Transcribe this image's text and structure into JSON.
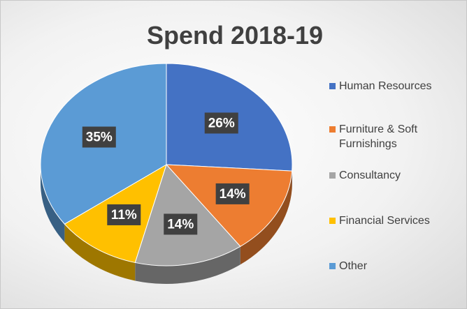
{
  "chart_data": {
    "type": "pie",
    "title": "Spend 2018-19",
    "categories": [
      "Human Resources",
      "Furniture & Soft Furnishings",
      "Consultancy",
      "Financial Services",
      "Other"
    ],
    "values": [
      26,
      14,
      14,
      11,
      35
    ],
    "value_labels": [
      "26%",
      "14%",
      "14%",
      "11%",
      "35%"
    ],
    "colors": [
      "#4472c4",
      "#ed7d31",
      "#a5a5a5",
      "#ffc000",
      "#5b9bd5"
    ],
    "legend": "right"
  }
}
